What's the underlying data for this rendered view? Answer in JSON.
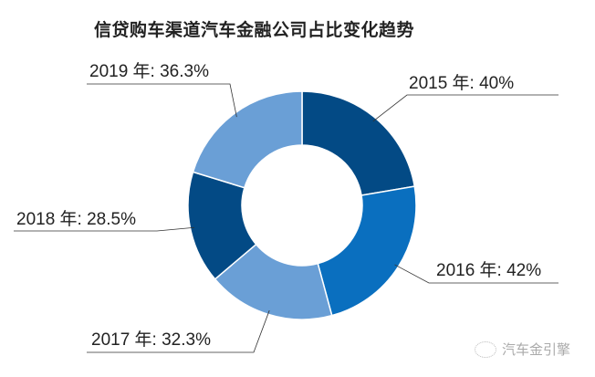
{
  "chart_data": {
    "type": "pie",
    "donut": true,
    "title": "信贷购车渠道汽车金融公司占比变化趋势",
    "categories": [
      "2015 年",
      "2016 年",
      "2017 年",
      "2018 年",
      "2019 年"
    ],
    "values": [
      40,
      42,
      32.3,
      28.5,
      36.3
    ],
    "labels": [
      "2015 年: 40%",
      "2016 年: 42%",
      "2017 年: 32.3%",
      "2018 年: 28.5%",
      "2019 年: 36.3%"
    ],
    "colors": [
      "#034a85",
      "#0a6fbf",
      "#6a9fd6",
      "#034a85",
      "#6a9fd6"
    ],
    "start": "top",
    "direction": "clockwise"
  },
  "watermark": "汽车金引擎"
}
